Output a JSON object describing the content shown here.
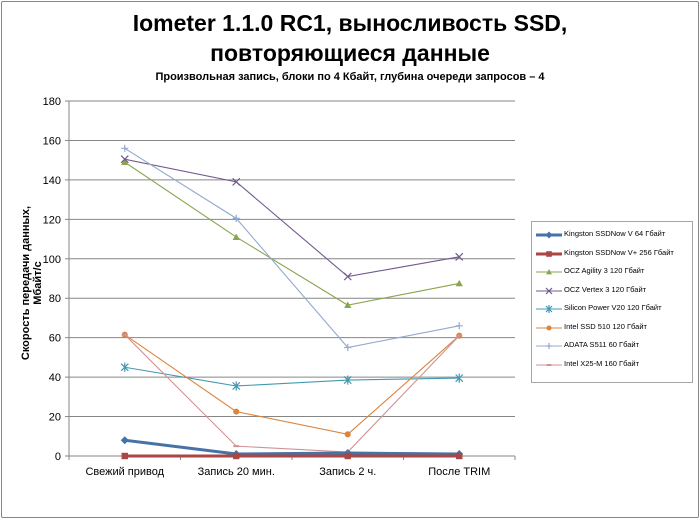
{
  "chart_data": {
    "type": "line",
    "title": "Iometer 1.1.0 RC1, выносливость SSD,",
    "title_line2": "повторяющиеся данные",
    "subtitle": "Произвольная  запись,  блоки по 4 Кбайт,  глубина очереди запросов  – 4",
    "ylabel": "Скорость  передачи  данных,  Мбайт/с",
    "xlabel": "",
    "ylim": [
      0,
      180
    ],
    "yticks": [
      0,
      20,
      40,
      60,
      80,
      100,
      120,
      140,
      160,
      180
    ],
    "categories": [
      "Свежий  привод",
      "Запись 20 мин.",
      "Запись 2 ч.",
      "После TRIM"
    ],
    "grid": true,
    "legend_position": "right",
    "series": [
      {
        "name": "Kingston SSDNow  V  64 Гбайт",
        "values": [
          8,
          1,
          1.5,
          1
        ],
        "color": "#4572a7",
        "marker": "diamond",
        "bold": true
      },
      {
        "name": "Kingston SSDNow  V+ 256 Гбайт",
        "values": [
          0,
          0,
          0,
          0
        ],
        "color": "#aa4643",
        "marker": "square",
        "bold": true
      },
      {
        "name": "OCZ Agility  3 120 Гбайт",
        "values": [
          149,
          111,
          76.5,
          87.5
        ],
        "color": "#89a54e",
        "marker": "triangle"
      },
      {
        "name": "OCZ Vertex  3 120 Гбайт",
        "values": [
          150.5,
          139,
          91,
          101
        ],
        "color": "#71588f",
        "marker": "x"
      },
      {
        "name": "Silicon Power  V20 120 Гбайт",
        "values": [
          45,
          35.5,
          38.5,
          39.5
        ],
        "color": "#4198af",
        "marker": "star"
      },
      {
        "name": "Intel  SSD 510 120 Гбайт",
        "values": [
          61.5,
          22.5,
          11,
          61
        ],
        "color": "#db843d",
        "marker": "circle"
      },
      {
        "name": "ADATA  S511 60 Гбайт",
        "values": [
          156,
          120.5,
          55,
          66
        ],
        "color": "#93a9cf",
        "marker": "plus"
      },
      {
        "name": "Intel  X25-M 160 Гбайт",
        "values": [
          61.5,
          5,
          2,
          61
        ],
        "color": "#d19392",
        "marker": "dash"
      }
    ]
  }
}
